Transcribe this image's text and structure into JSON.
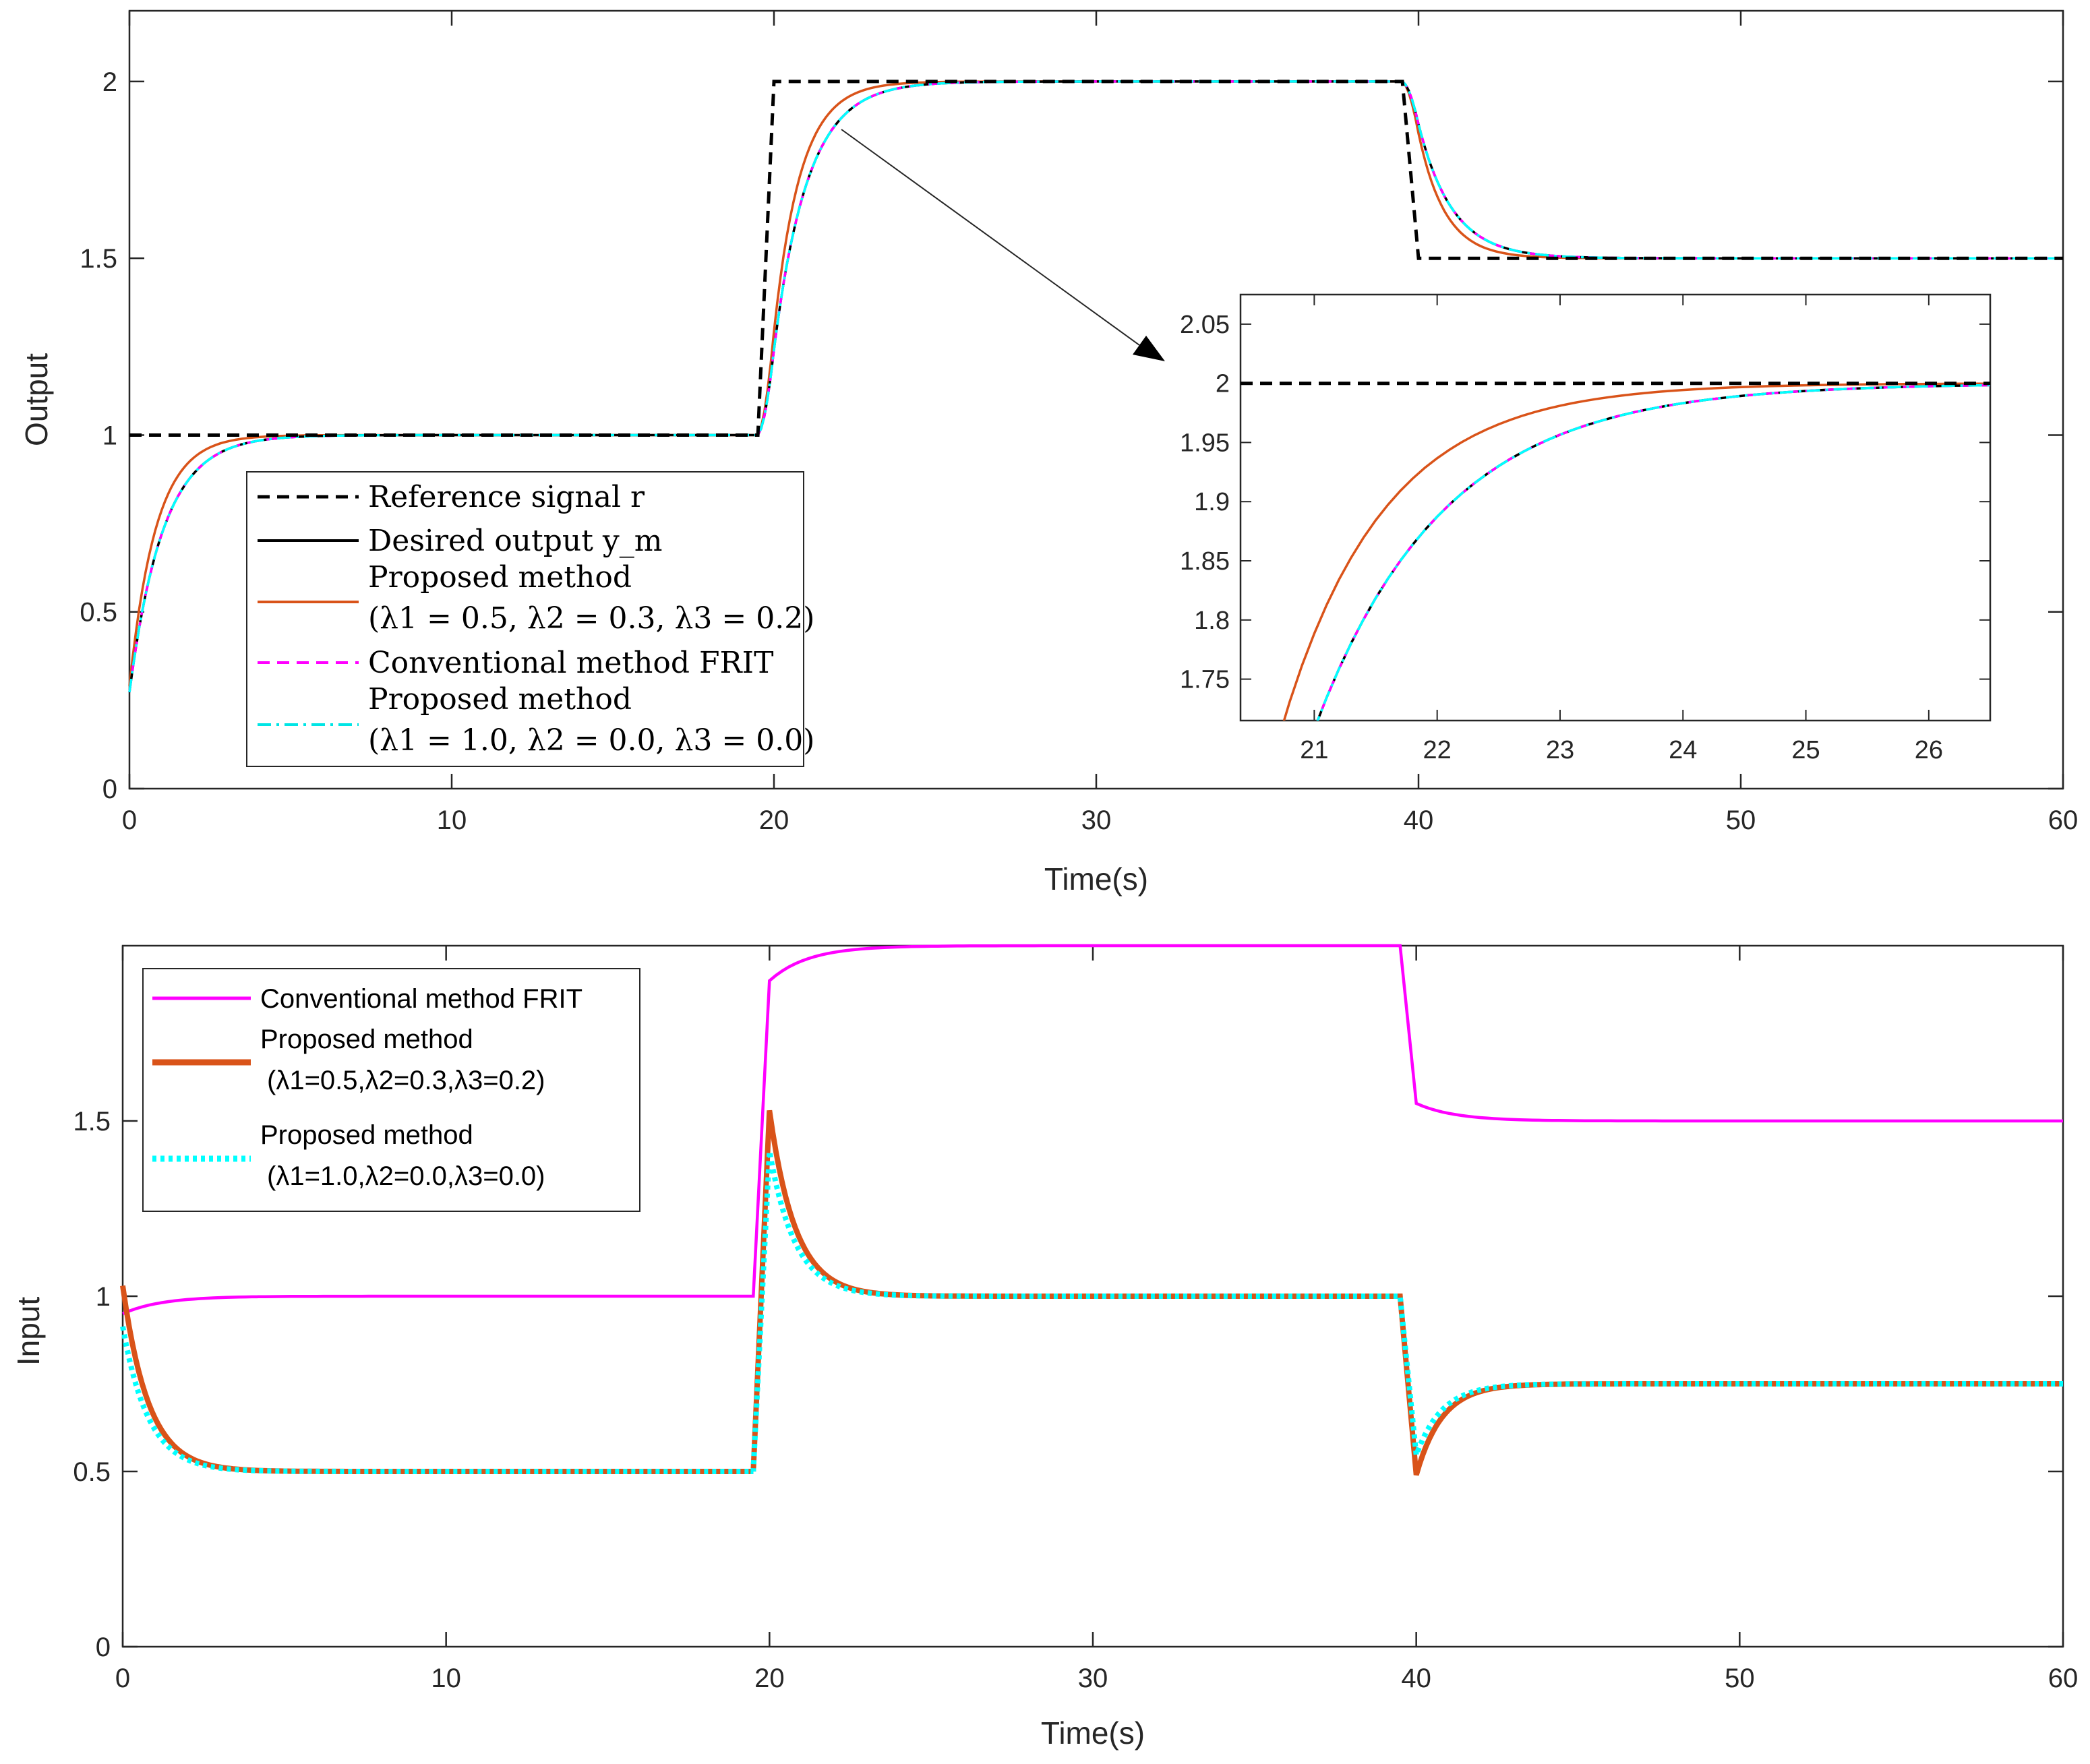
{
  "chart_data": [
    {
      "type": "line",
      "xlabel": "Time(s)",
      "ylabel": "Output",
      "xlim": [
        0,
        60
      ],
      "ylim": [
        0,
        2.2
      ],
      "xticks": [
        "0",
        "10",
        "20",
        "30",
        "40",
        "50",
        "60"
      ],
      "yticks": [
        "0",
        "0.5",
        "1",
        "1.5",
        "2"
      ],
      "grid": false,
      "legend_position": "bottom-left",
      "legend": [
        {
          "line1": "Reference signal r",
          "line2": ""
        },
        {
          "line1": "Desired output y_m",
          "line2": ""
        },
        {
          "line1": "Proposed method",
          "line2": "(λ1 = 0.5, λ2 = 0.3, λ3 = 0.2)"
        },
        {
          "line1": "Conventional method FRIT",
          "line2": ""
        },
        {
          "line1": "Proposed method",
          "line2": "(λ1 = 1.0, λ2 = 0.0, λ3 = 0.0)"
        }
      ],
      "series": [
        {
          "key": "reference",
          "color": "#000000",
          "style": "dashed",
          "time_constant": 0.0
        },
        {
          "key": "desired",
          "color": "#000000",
          "style": "solid",
          "time_constant": 1.0
        },
        {
          "key": "proposed_a",
          "color": "#d95319",
          "style": "solid",
          "time_constant": 0.78
        },
        {
          "key": "frit",
          "color": "#ff00ff",
          "style": "dashed",
          "time_constant": 1.0
        },
        {
          "key": "proposed_b",
          "color": "#00ffff",
          "style": "dashdot",
          "time_constant": 1.0
        }
      ],
      "reference_steps": [
        [
          0,
          1.0
        ],
        [
          19.5,
          1.0
        ],
        [
          20.0,
          2.0
        ],
        [
          39.5,
          2.0
        ],
        [
          40.0,
          1.5
        ],
        [
          60,
          1.5
        ]
      ],
      "inset": {
        "xlim": [
          20.4,
          26.5
        ],
        "ylim": [
          1.715,
          2.075
        ],
        "xticks": [
          "21",
          "22",
          "23",
          "24",
          "25",
          "26"
        ],
        "yticks": [
          "1.75",
          "1.8",
          "1.85",
          "1.9",
          "1.95",
          "2",
          "2.05"
        ]
      }
    },
    {
      "type": "line",
      "xlabel": "Time(s)",
      "ylabel": "Input",
      "xlim": [
        0,
        60
      ],
      "ylim": [
        0,
        2.0
      ],
      "xticks": [
        "0",
        "10",
        "20",
        "30",
        "40",
        "50",
        "60"
      ],
      "yticks": [
        "0",
        "0.5",
        "1",
        "1.5"
      ],
      "grid": false,
      "legend_position": "top-left",
      "legend": [
        {
          "line1": "Conventional method FRIT",
          "line2": ""
        },
        {
          "line1": "Proposed method",
          "line2": "(λ1=0.5,λ2=0.3,λ3=0.2)"
        },
        {
          "line1": "Proposed method",
          "line2": "(λ1=1.0,λ2=0.0,λ3=0.0)"
        }
      ],
      "series": [
        {
          "key": "frit",
          "color": "#ff00ff",
          "style": "solid"
        },
        {
          "key": "proposed_a",
          "color": "#d95319",
          "style": "solid"
        },
        {
          "key": "proposed_b",
          "color": "#00ffff",
          "style": "dotted"
        }
      ],
      "frit_levels": [
        [
          0,
          0.95
        ],
        [
          19.5,
          1.0
        ],
        [
          20.0,
          1.9
        ],
        [
          39.5,
          2.0
        ],
        [
          40.0,
          1.55
        ],
        [
          60,
          1.5
        ]
      ],
      "proposed_levels": [
        [
          0,
          1.03
        ],
        [
          19.5,
          0.5
        ],
        [
          20.0,
          1.53
        ],
        [
          39.5,
          1.0
        ],
        [
          40.0,
          0.49
        ],
        [
          60,
          0.75
        ]
      ]
    }
  ]
}
